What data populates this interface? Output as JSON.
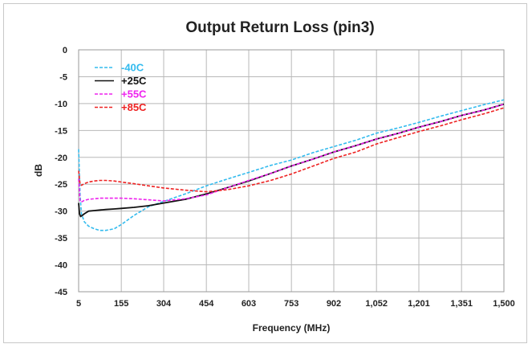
{
  "chart_data": {
    "type": "line",
    "title": "Output Return Loss (pin3)",
    "xlabel": "Frequency (MHz)",
    "ylabel": "dB",
    "xlim": [
      5,
      1500
    ],
    "ylim": [
      -45,
      0
    ],
    "x_ticks": [
      5,
      155,
      304,
      454,
      603,
      753,
      902,
      1052,
      1201,
      1351,
      1500
    ],
    "x_tick_labels": [
      "5",
      "155",
      "304",
      "454",
      "603",
      "753",
      "902",
      "1,052",
      "1,201",
      "1,351",
      "1,500"
    ],
    "y_ticks": [
      0,
      -5,
      -10,
      -15,
      -20,
      -25,
      -30,
      -35,
      -40,
      -45
    ],
    "y_tick_labels": [
      "0",
      "-5",
      "-10",
      "-15",
      "-20",
      "-25",
      "-30",
      "-35",
      "-40",
      "-45"
    ],
    "grid": true,
    "legend_position": "top-left",
    "series": [
      {
        "name": "-40C",
        "color": "#33bbee",
        "dash": "dashed",
        "x": [
          5,
          10,
          15,
          25,
          40,
          60,
          80,
          100,
          130,
          155,
          200,
          250,
          304,
          380,
          454,
          530,
          603,
          680,
          753,
          830,
          902,
          980,
          1052,
          1130,
          1201,
          1280,
          1351,
          1430,
          1500
        ],
        "y": [
          -18.5,
          -27,
          -30.5,
          -32,
          -32.8,
          -33.3,
          -33.6,
          -33.6,
          -33.3,
          -32.5,
          -30.8,
          -29.2,
          -28.2,
          -26.8,
          -25.3,
          -24,
          -22.8,
          -21.5,
          -20.5,
          -19.1,
          -18,
          -16.8,
          -15.5,
          -14.5,
          -13.5,
          -12.3,
          -11.3,
          -10.2,
          -9.3
        ]
      },
      {
        "name": "+25C",
        "color": "#111111",
        "dash": "solid",
        "x": [
          5,
          8,
          12,
          18,
          25,
          40,
          60,
          80,
          100,
          130,
          155,
          200,
          250,
          304,
          380,
          454,
          530,
          603,
          680,
          753,
          830,
          902,
          980,
          1052,
          1130,
          1201,
          1280,
          1351,
          1430,
          1500
        ],
        "y": [
          -28.5,
          -30.5,
          -31,
          -30.8,
          -30.5,
          -30,
          -29.9,
          -29.8,
          -29.7,
          -29.6,
          -29.5,
          -29.3,
          -29,
          -28.5,
          -27.8,
          -26.8,
          -25.6,
          -24.4,
          -23,
          -21.6,
          -20.3,
          -19,
          -17.8,
          -16.6,
          -15.5,
          -14.4,
          -13.3,
          -12.2,
          -11.2,
          -10.1
        ]
      },
      {
        "name": "+55C",
        "color": "#ee22ee",
        "dash": "dashed",
        "x": [
          5,
          10,
          15,
          25,
          40,
          60,
          80,
          100,
          130,
          155,
          200,
          250,
          304,
          380,
          454,
          530,
          603,
          680,
          753,
          830,
          902,
          980,
          1052,
          1130,
          1201,
          1280,
          1351,
          1430,
          1500
        ],
        "y": [
          -24,
          -28.2,
          -28.3,
          -28,
          -27.8,
          -27.7,
          -27.6,
          -27.6,
          -27.6,
          -27.6,
          -27.7,
          -27.9,
          -28.1,
          -27.7,
          -27,
          -25.6,
          -24.3,
          -23,
          -21.6,
          -20.3,
          -19,
          -17.8,
          -16.6,
          -15.5,
          -14.4,
          -13.3,
          -12.2,
          -11.2,
          -10.1
        ]
      },
      {
        "name": "+85C",
        "color": "#ee2222",
        "dash": "dashed",
        "x": [
          5,
          10,
          15,
          25,
          40,
          60,
          80,
          100,
          130,
          155,
          200,
          250,
          304,
          380,
          454,
          530,
          603,
          680,
          753,
          830,
          902,
          980,
          1052,
          1130,
          1201,
          1280,
          1351,
          1430,
          1500
        ],
        "y": [
          -22.5,
          -25,
          -25.2,
          -24.9,
          -24.6,
          -24.4,
          -24.3,
          -24.3,
          -24.4,
          -24.6,
          -24.9,
          -25.3,
          -25.7,
          -26.1,
          -26.4,
          -26,
          -25.3,
          -24.3,
          -23.1,
          -21.6,
          -20.2,
          -19,
          -17.5,
          -16.3,
          -15.2,
          -14.1,
          -13,
          -11.9,
          -10.8
        ]
      }
    ]
  }
}
